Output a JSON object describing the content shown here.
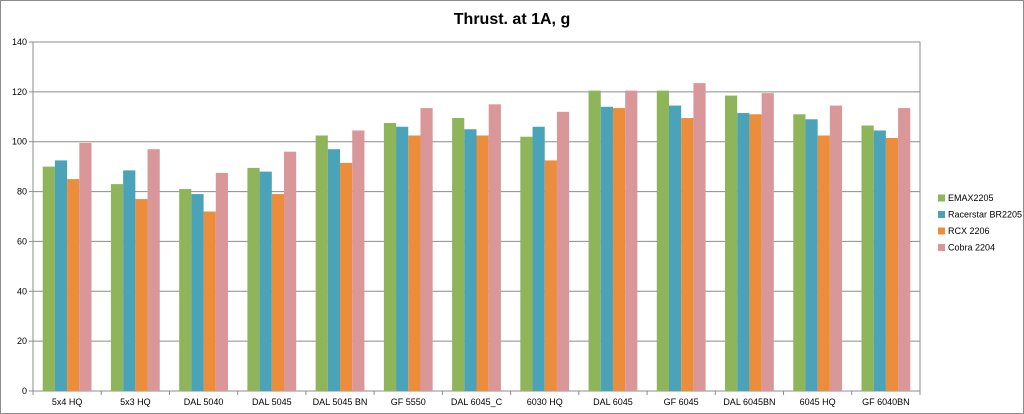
{
  "chart_data": {
    "type": "bar",
    "title": "Thrust. at 1A, g",
    "xlabel": "",
    "ylabel": "",
    "ylim": [
      0,
      140
    ],
    "yticks": [
      0,
      20,
      40,
      60,
      80,
      100,
      120,
      140
    ],
    "grid": true,
    "legend_position": "right",
    "categories": [
      "5x4 HQ",
      "5x3 HQ",
      "DAL 5040",
      "DAL 5045",
      "DAL 5045 BN",
      "GF 5550",
      "DAL 6045_C",
      "6030 HQ",
      "DAL 6045",
      "GF 6045",
      "DAL 6045BN",
      "6045 HQ",
      "GF 6040BN"
    ],
    "series": [
      {
        "name": "EMAX2205",
        "color": "#8fb55a",
        "values": [
          90,
          83,
          81,
          89.5,
          102.5,
          107.5,
          109.5,
          102,
          120.5,
          120.5,
          118.5,
          111,
          106.5
        ]
      },
      {
        "name": "Racerstar BR2205",
        "color": "#4aa3b8",
        "values": [
          92.5,
          88.5,
          79,
          88,
          97,
          106,
          105,
          106,
          114,
          114.5,
          111.5,
          109,
          104.5
        ]
      },
      {
        "name": "RCX 2206",
        "color": "#ec8d3c",
        "values": [
          85,
          77,
          72,
          79,
          91.5,
          102.5,
          102.5,
          92.5,
          113.5,
          109.5,
          111,
          102.5,
          101.5
        ]
      },
      {
        "name": "Cobra 2204",
        "color": "#d9979a",
        "values": [
          99.5,
          97,
          87.5,
          96,
          104.5,
          113.5,
          115,
          112,
          120.5,
          123.5,
          119.5,
          114.5,
          113.5
        ]
      }
    ]
  }
}
